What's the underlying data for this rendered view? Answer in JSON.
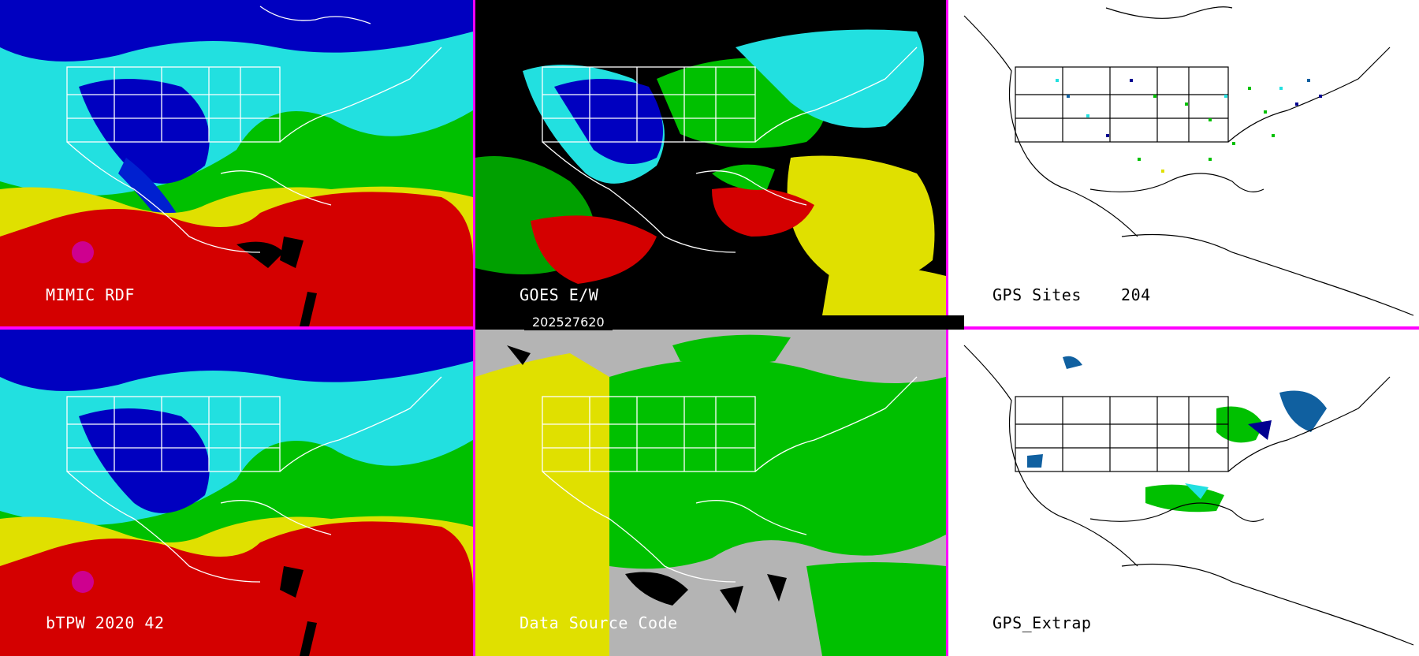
{
  "panels": {
    "mimic": {
      "label": "MIMIC RDF"
    },
    "goes": {
      "label": "GOES E/W"
    },
    "gps_sites": {
      "label": "GPS Sites    204"
    },
    "btpw": {
      "label": "bTPW 2020 42"
    },
    "data_source": {
      "label": "Data Source Code"
    },
    "gps_extrap": {
      "label": "GPS_Extrap"
    }
  },
  "timestamp": "202527620",
  "colors": {
    "divider": "#ff00ff",
    "tpw_scale": [
      "#cc00cc",
      "#d40000",
      "#e0e000",
      "#00cc00",
      "#22e0e0",
      "#0000c0",
      "#a0a0a0",
      "#ffffff"
    ],
    "data_source": [
      "#b4b4b4",
      "#e0e000",
      "#00c000",
      "#000000"
    ]
  }
}
